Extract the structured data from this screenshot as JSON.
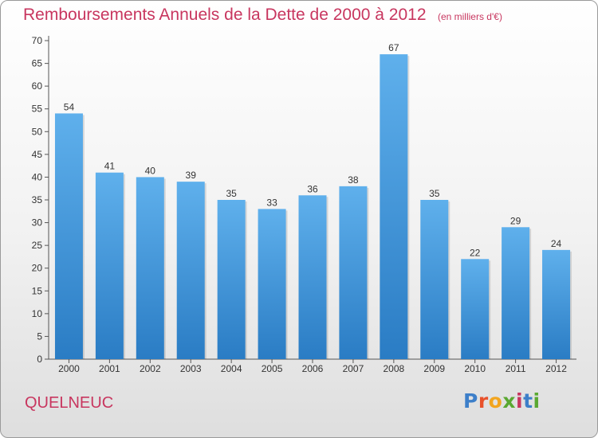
{
  "header": {
    "title": "Remboursements Annuels de la Dette de 2000 à 2012",
    "unit": "(en milliers d'€)"
  },
  "footer": {
    "commune": "QUELNEUC",
    "logo_letters": [
      {
        "ch": "P",
        "color": "#3d7fc9"
      },
      {
        "ch": "r",
        "color": "#e8512b"
      },
      {
        "ch": "o",
        "color": "#f2a51f"
      },
      {
        "ch": "x",
        "color": "#5aa832"
      },
      {
        "ch": "i",
        "color": "#c8365f"
      },
      {
        "ch": "t",
        "color": "#3d7fc9"
      },
      {
        "ch": "i",
        "color": "#5aa832"
      }
    ]
  },
  "colors": {
    "bar_top": "#5fb0ec",
    "bar_bottom": "#2a7cc4",
    "title": "#c8365f"
  },
  "chart_data": {
    "type": "bar",
    "title": "Remboursements Annuels de la Dette de 2000 à 2012",
    "categories": [
      "2000",
      "2001",
      "2002",
      "2003",
      "2004",
      "2005",
      "2006",
      "2007",
      "2008",
      "2009",
      "2010",
      "2011",
      "2012"
    ],
    "values": [
      54,
      41,
      40,
      39,
      35,
      33,
      36,
      38,
      67,
      35,
      22,
      29,
      24
    ],
    "ylim": [
      0,
      70
    ],
    "yticks": [
      0,
      5,
      10,
      15,
      20,
      25,
      30,
      35,
      40,
      45,
      50,
      55,
      60,
      65,
      70
    ],
    "xlabel": "",
    "ylabel": "",
    "grid": false,
    "data_labels": true
  }
}
